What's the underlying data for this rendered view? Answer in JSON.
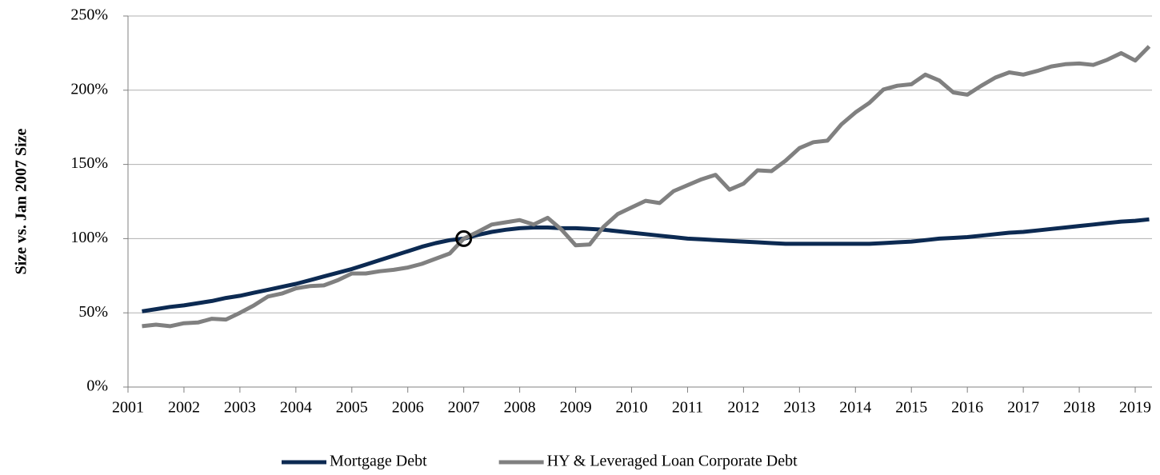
{
  "chart_data": {
    "type": "line",
    "y_axis_label": "Size vs. Jan 2007 Size",
    "x": [
      2001.25,
      2001.5,
      2001.75,
      2002,
      2002.25,
      2002.5,
      2002.75,
      2003,
      2003.25,
      2003.5,
      2003.75,
      2004,
      2004.25,
      2004.5,
      2004.75,
      2005,
      2005.25,
      2005.5,
      2005.75,
      2006,
      2006.25,
      2006.5,
      2006.75,
      2007,
      2007.25,
      2007.5,
      2007.75,
      2008,
      2008.25,
      2008.5,
      2008.75,
      2009,
      2009.25,
      2009.5,
      2009.75,
      2010,
      2010.25,
      2010.5,
      2010.75,
      2011,
      2011.25,
      2011.5,
      2011.75,
      2012,
      2012.25,
      2012.5,
      2012.75,
      2013,
      2013.25,
      2013.5,
      2013.75,
      2014,
      2014.25,
      2014.5,
      2014.75,
      2015,
      2015.25,
      2015.5,
      2015.75,
      2016,
      2016.25,
      2016.5,
      2016.75,
      2017,
      2017.25,
      2017.5,
      2017.75,
      2018,
      2018.25,
      2018.5,
      2018.75,
      2019,
      2019.25
    ],
    "series": [
      {
        "name": "Mortgage Debt",
        "color": "#0c2a52",
        "values": [
          51,
          52.5,
          54,
          55,
          56.5,
          58,
          60,
          61.5,
          63.5,
          65.5,
          67.5,
          69.5,
          72,
          74.5,
          77,
          79.5,
          82.5,
          85.5,
          88.5,
          91.5,
          94.5,
          97,
          99,
          100,
          102.5,
          104.5,
          106,
          107,
          107.5,
          107.5,
          107,
          107,
          106.5,
          106,
          105,
          104,
          103,
          102,
          101,
          100,
          99.5,
          99,
          98.5,
          98,
          97.5,
          97,
          96.5,
          96.5,
          96.5,
          96.5,
          96.5,
          96.5,
          96.5,
          97,
          97.5,
          98,
          99,
          100,
          100.5,
          101,
          102,
          103,
          104,
          104.5,
          105.5,
          106.5,
          107.5,
          108.5,
          109.5,
          110.5,
          111.5,
          112,
          113
        ]
      },
      {
        "name": "HY & Leveraged Loan Corporate Debt",
        "color": "#808080",
        "values": [
          41,
          42,
          41,
          43,
          43.5,
          46,
          45.5,
          50,
          55,
          61,
          63,
          66.5,
          68,
          68.5,
          72,
          76.5,
          76.5,
          78,
          79,
          80.5,
          83,
          86.5,
          90,
          100,
          104.5,
          109.5,
          111,
          112.5,
          109.5,
          114,
          106,
          95.5,
          96,
          108,
          116.5,
          121,
          125.5,
          124,
          132,
          136,
          140,
          143,
          133,
          137,
          146,
          145.5,
          152.5,
          161,
          165,
          166,
          177,
          185,
          191.5,
          200.5,
          203,
          204,
          210.5,
          206.5,
          198.5,
          197,
          203,
          208.5,
          212,
          210.5,
          213,
          216,
          217.5,
          218,
          217,
          220.5,
          225,
          220,
          229.5
        ]
      }
    ],
    "marker": {
      "x": 2007,
      "y": 100
    },
    "xlim": [
      2001,
      2019.3
    ],
    "xticks": [
      2001,
      2002,
      2003,
      2004,
      2005,
      2006,
      2007,
      2008,
      2009,
      2010,
      2011,
      2012,
      2013,
      2014,
      2015,
      2016,
      2017,
      2018,
      2019
    ],
    "ylim": [
      0,
      250
    ],
    "yticks": [
      {
        "value": 0,
        "label": "0%"
      },
      {
        "value": 50,
        "label": "50%"
      },
      {
        "value": 100,
        "label": "100%"
      },
      {
        "value": 150,
        "label": "150%"
      },
      {
        "value": 200,
        "label": "200%"
      },
      {
        "value": 250,
        "label": "250%"
      }
    ],
    "grid": true,
    "legend": "bottom"
  }
}
